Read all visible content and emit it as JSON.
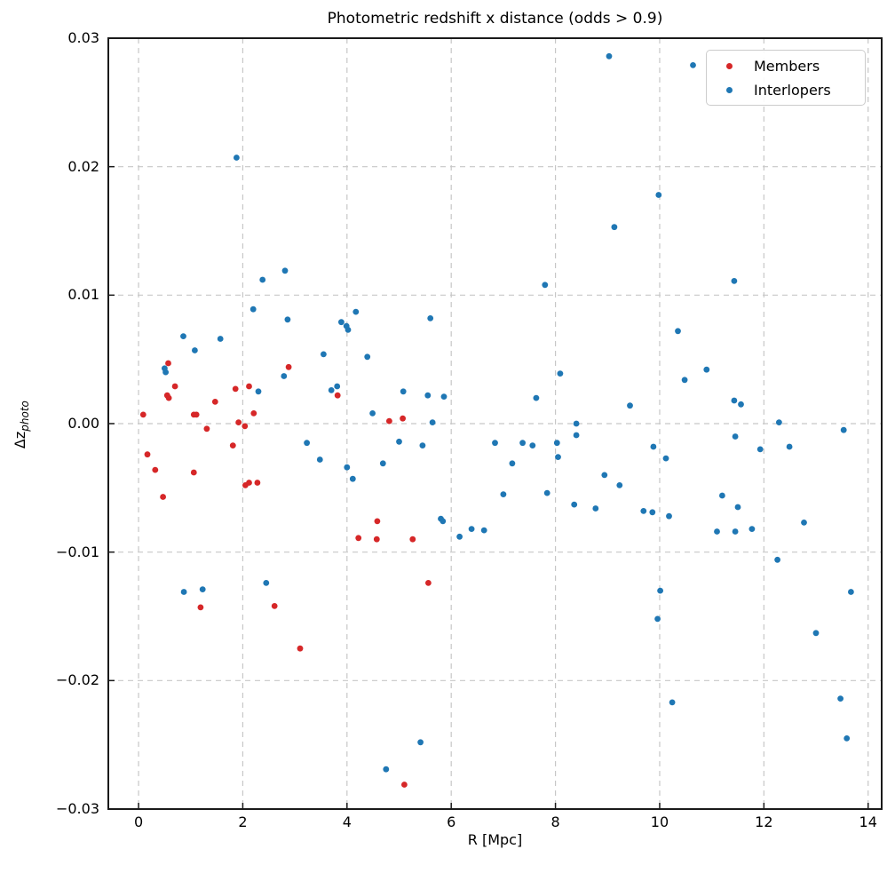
{
  "chart_data": {
    "type": "scatter",
    "title": "Photometric redshift x distance (odds > 0.9)",
    "xlabel": "R [Mpc]",
    "ylabel": "Δz_photo",
    "ylabel_main": "Δz",
    "ylabel_sub": "photo",
    "xlim": [
      -0.58,
      14.26
    ],
    "ylim": [
      -0.03,
      0.03
    ],
    "grid": true,
    "grid_style": "dashed",
    "grid_color": "#c7c7c7",
    "legend_position": "upper right",
    "xticks": [
      {
        "v": 0,
        "label": "0"
      },
      {
        "v": 2,
        "label": "2"
      },
      {
        "v": 4,
        "label": "4"
      },
      {
        "v": 6,
        "label": "6"
      },
      {
        "v": 8,
        "label": "8"
      },
      {
        "v": 10,
        "label": "10"
      },
      {
        "v": 12,
        "label": "12"
      },
      {
        "v": 14,
        "label": "14"
      }
    ],
    "yticks": [
      {
        "v": 0.03,
        "label": "0.03"
      },
      {
        "v": 0.02,
        "label": "0.02"
      },
      {
        "v": 0.01,
        "label": "0.01"
      },
      {
        "v": 0.0,
        "label": "0.00"
      },
      {
        "v": -0.01,
        "label": "−0.01"
      },
      {
        "v": -0.02,
        "label": "−0.02"
      },
      {
        "v": -0.03,
        "label": "−0.03"
      }
    ],
    "series": [
      {
        "name": "Members",
        "color": "#d62728",
        "marker": "circle",
        "points": [
          [
            0.09,
            0.0007
          ],
          [
            0.17,
            -0.0024
          ],
          [
            0.32,
            -0.0036
          ],
          [
            0.47,
            -0.0057
          ],
          [
            0.55,
            0.0022
          ],
          [
            0.57,
            0.0047
          ],
          [
            0.58,
            0.002
          ],
          [
            0.7,
            0.0029
          ],
          [
            1.06,
            0.0007
          ],
          [
            1.11,
            0.0007
          ],
          [
            1.06,
            -0.0038
          ],
          [
            1.19,
            -0.0143
          ],
          [
            1.31,
            -0.0004
          ],
          [
            1.47,
            0.0017
          ],
          [
            1.81,
            -0.0017
          ],
          [
            1.86,
            0.0027
          ],
          [
            1.92,
            0.0001
          ],
          [
            2.04,
            -0.0002
          ],
          [
            2.05,
            -0.0048
          ],
          [
            2.12,
            0.0029
          ],
          [
            2.12,
            -0.0046
          ],
          [
            2.21,
            0.0008
          ],
          [
            2.28,
            -0.0046
          ],
          [
            2.61,
            -0.0142
          ],
          [
            2.88,
            0.0044
          ],
          [
            3.1,
            -0.0175
          ],
          [
            3.82,
            0.0022
          ],
          [
            4.22,
            -0.0089
          ],
          [
            4.58,
            -0.0076
          ],
          [
            4.57,
            -0.009
          ],
          [
            4.81,
            0.0002
          ],
          [
            5.07,
            0.0004
          ],
          [
            5.26,
            -0.009
          ],
          [
            5.56,
            -0.0124
          ],
          [
            5.1,
            -0.0281
          ]
        ]
      },
      {
        "name": "Interlopers",
        "color": "#1f77b4",
        "marker": "circle",
        "points": [
          [
            0.5,
            0.0043
          ],
          [
            0.52,
            0.004
          ],
          [
            0.86,
            0.0068
          ],
          [
            1.08,
            0.0057
          ],
          [
            1.57,
            0.0066
          ],
          [
            1.88,
            0.0207
          ],
          [
            2.2,
            0.0089
          ],
          [
            2.3,
            0.0025
          ],
          [
            2.38,
            0.0112
          ],
          [
            2.45,
            -0.0124
          ],
          [
            2.79,
            0.0037
          ],
          [
            2.81,
            0.0119
          ],
          [
            2.86,
            0.0081
          ],
          [
            0.87,
            -0.0131
          ],
          [
            1.23,
            -0.0129
          ],
          [
            3.23,
            -0.0015
          ],
          [
            3.48,
            -0.0028
          ],
          [
            3.55,
            0.0054
          ],
          [
            3.7,
            0.0026
          ],
          [
            3.81,
            0.0029
          ],
          [
            3.89,
            0.0079
          ],
          [
            3.99,
            0.0076
          ],
          [
            4.02,
            0.0073
          ],
          [
            4.17,
            0.0087
          ],
          [
            4.39,
            0.0052
          ],
          [
            4.0,
            -0.0034
          ],
          [
            4.11,
            -0.0043
          ],
          [
            4.49,
            0.0008
          ],
          [
            4.69,
            -0.0031
          ],
          [
            4.75,
            -0.0269
          ],
          [
            5.0,
            -0.0014
          ],
          [
            5.08,
            0.0025
          ],
          [
            5.41,
            -0.0248
          ],
          [
            5.45,
            -0.0017
          ],
          [
            5.55,
            0.0022
          ],
          [
            5.6,
            0.0082
          ],
          [
            5.64,
            0.0001
          ],
          [
            5.8,
            -0.0074
          ],
          [
            5.84,
            -0.0076
          ],
          [
            5.86,
            0.0021
          ],
          [
            6.16,
            -0.0088
          ],
          [
            6.39,
            -0.0082
          ],
          [
            6.63,
            -0.0083
          ],
          [
            6.84,
            -0.0015
          ],
          [
            7.0,
            -0.0055
          ],
          [
            7.17,
            -0.0031
          ],
          [
            7.37,
            -0.0015
          ],
          [
            7.56,
            -0.0017
          ],
          [
            7.63,
            0.002
          ],
          [
            7.8,
            0.0108
          ],
          [
            7.84,
            -0.0054
          ],
          [
            8.03,
            -0.0015
          ],
          [
            8.05,
            -0.0026
          ],
          [
            8.09,
            0.0039
          ],
          [
            8.4,
            0.0
          ],
          [
            8.4,
            -0.0009
          ],
          [
            8.36,
            -0.0063
          ],
          [
            8.77,
            -0.0066
          ],
          [
            8.94,
            -0.004
          ],
          [
            9.03,
            0.0286
          ],
          [
            9.13,
            0.0153
          ],
          [
            9.23,
            -0.0048
          ],
          [
            9.43,
            0.0014
          ],
          [
            9.69,
            -0.0068
          ],
          [
            9.86,
            -0.0069
          ],
          [
            9.88,
            -0.0018
          ],
          [
            9.96,
            -0.0152
          ],
          [
            9.98,
            0.0178
          ],
          [
            10.01,
            -0.013
          ],
          [
            10.12,
            -0.0027
          ],
          [
            10.18,
            -0.0072
          ],
          [
            10.24,
            -0.0217
          ],
          [
            10.35,
            0.0072
          ],
          [
            10.48,
            0.0034
          ],
          [
            10.64,
            0.0279
          ],
          [
            10.9,
            0.0042
          ],
          [
            11.1,
            -0.0084
          ],
          [
            11.2,
            -0.0056
          ],
          [
            11.43,
            0.0018
          ],
          [
            11.43,
            0.0111
          ],
          [
            11.45,
            -0.0084
          ],
          [
            11.45,
            -0.001
          ],
          [
            11.5,
            -0.0065
          ],
          [
            11.56,
            0.0015
          ],
          [
            11.77,
            -0.0082
          ],
          [
            11.93,
            -0.002
          ],
          [
            12.26,
            -0.0106
          ],
          [
            12.29,
            0.0001
          ],
          [
            12.49,
            -0.0018
          ],
          [
            12.77,
            -0.0077
          ],
          [
            13.0,
            -0.0163
          ],
          [
            13.47,
            -0.0214
          ],
          [
            13.53,
            -0.0005
          ],
          [
            13.59,
            -0.0245
          ],
          [
            13.67,
            -0.0131
          ]
        ]
      }
    ]
  }
}
